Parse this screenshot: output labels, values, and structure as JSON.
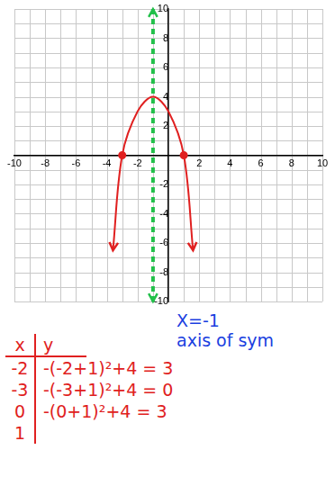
{
  "chart_data": {
    "type": "scatter",
    "xlim": [
      -10,
      10
    ],
    "ylim": [
      -10,
      10
    ],
    "xticks": [
      -10,
      -8,
      -6,
      -4,
      -2,
      2,
      4,
      6,
      8,
      10
    ],
    "yticks": [
      -10,
      -8,
      -6,
      -4,
      -2,
      2,
      4,
      6,
      8,
      10
    ],
    "grid": true,
    "series": [
      {
        "type": "line",
        "color": "#e02020",
        "marker": "arrow",
        "line_style": "solid",
        "x": [
          -3.6,
          -3,
          -2,
          -1,
          0,
          1,
          1.6
        ],
        "values": [
          -6.5,
          0,
          3,
          4,
          3,
          0,
          -6.5
        ]
      },
      {
        "type": "scatter",
        "color": "#e02020",
        "marker": "circle",
        "x": [
          -3,
          1
        ],
        "values": [
          0,
          0
        ]
      },
      {
        "type": "line",
        "color": "#22c04a",
        "marker": "arrow",
        "line_style": "dashed",
        "x": [
          -1,
          -1
        ],
        "values": [
          -10,
          10
        ]
      }
    ],
    "annotations": [
      {
        "text": "X=-1",
        "color": "#1a3fe0"
      },
      {
        "text": "axis of sym",
        "color": "#1a3fe0"
      }
    ]
  },
  "table": {
    "columns": [
      "x",
      "y"
    ],
    "rows": [
      [
        "-2",
        "-(-2+1)²+4 = 3"
      ],
      [
        "-3",
        "-(-3+1)²+4 = 0"
      ],
      [
        "0",
        "-(0+1)²+4 = 3"
      ],
      [
        "1",
        null
      ]
    ],
    "color": "#e02020"
  }
}
